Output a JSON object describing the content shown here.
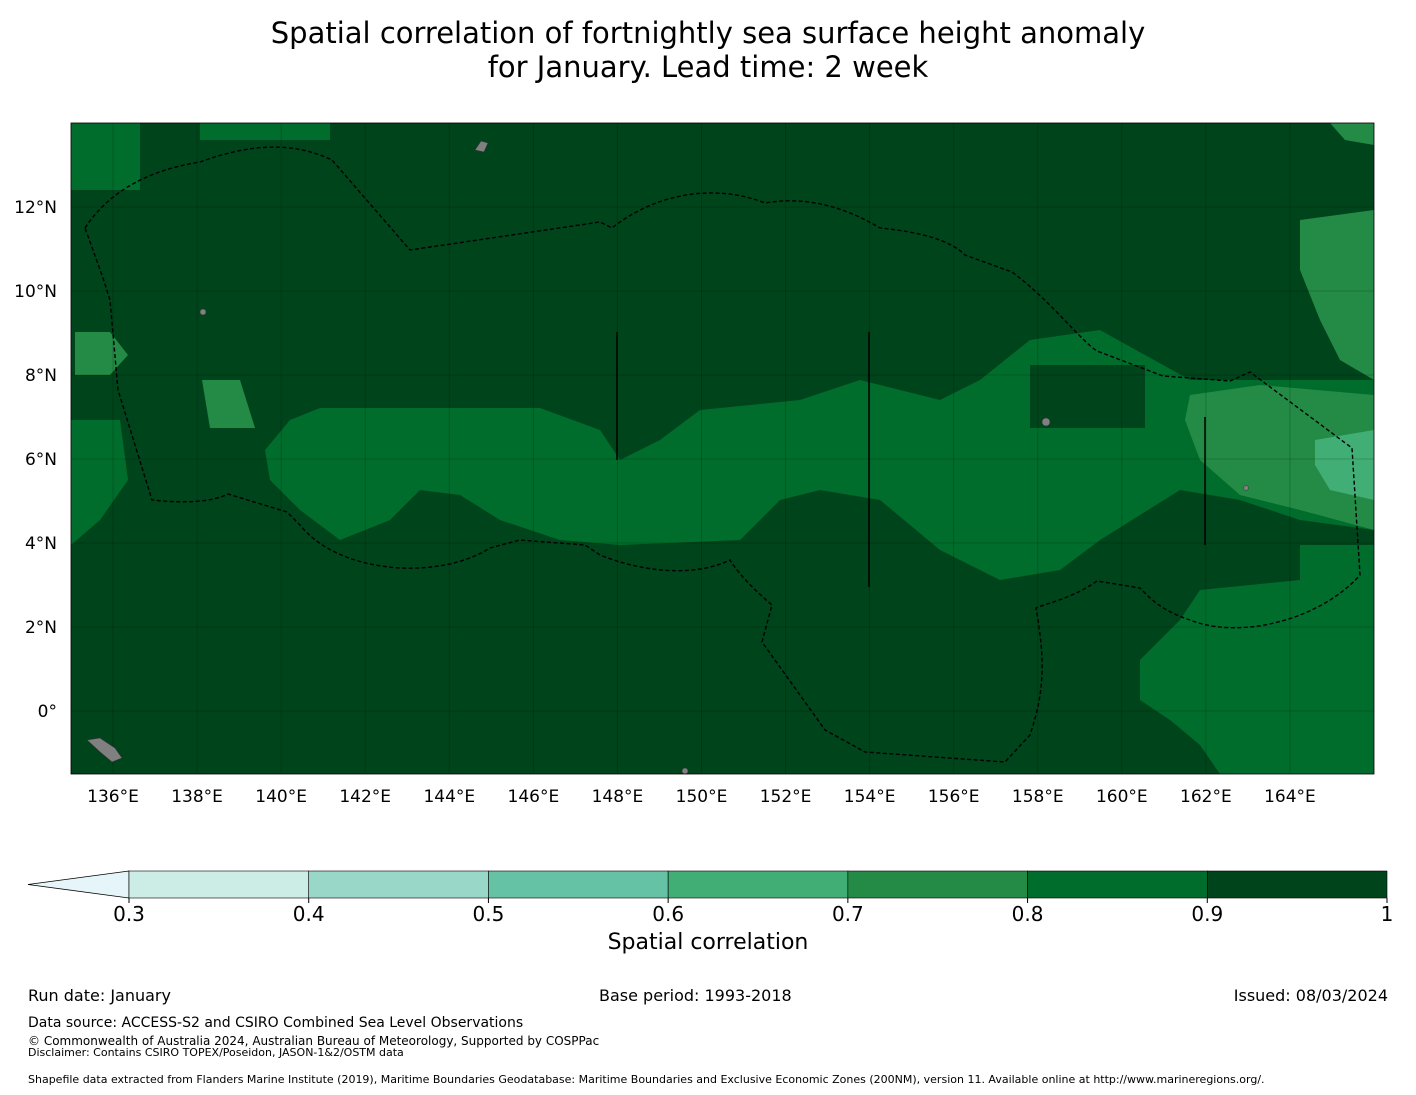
{
  "title": {
    "line1": "Spatial correlation of fortnightly sea surface height anomaly",
    "line2": "for January. Lead time: 2 week"
  },
  "map": {
    "lon_range": [
      135,
      166
    ],
    "lat_range": [
      -1.5,
      14
    ],
    "lon_ticks": [
      "136°E",
      "138°E",
      "140°E",
      "142°E",
      "144°E",
      "146°E",
      "148°E",
      "150°E",
      "152°E",
      "154°E",
      "156°E",
      "158°E",
      "160°E",
      "162°E",
      "164°E"
    ],
    "lat_ticks": [
      "12°N",
      "10°N",
      "8°N",
      "6°N",
      "4°N",
      "2°N",
      "0°"
    ]
  },
  "colorbar": {
    "label": "Spatial correlation",
    "ticks": [
      "0.3",
      "0.4",
      "0.5",
      "0.6",
      "0.7",
      "0.8",
      "0.9",
      "1"
    ],
    "colors": [
      "#e5f5f9",
      "#ccece6",
      "#99d8c9",
      "#66c2a4",
      "#41ae76",
      "#238b45",
      "#006d2c",
      "#00441b"
    ]
  },
  "footer": {
    "run_date": "Run date: January",
    "base_period": "Base period: 1993-2018",
    "issued": "Issued: 08/03/2024",
    "data_source": "Data source: ACCESS-S2 and CSIRO Combined Sea Level Observations",
    "copyright": "© Commonwealth of Australia 2024, Australian Bureau of Meteorology, Supported by COSPPac",
    "disclaimer": "Disclaimer: Contains CSIRO TOPEX/Poseidon, JASON-1&2/OSTM data",
    "shapefile": "Shapefile data extracted from Flanders Marine Institute (2019), Maritime Boundaries Geodatabase: Maritime Boundaries and Exclusive Economic Zones (200NM), version 11. Available online at http://www.marineregions.org/."
  }
}
